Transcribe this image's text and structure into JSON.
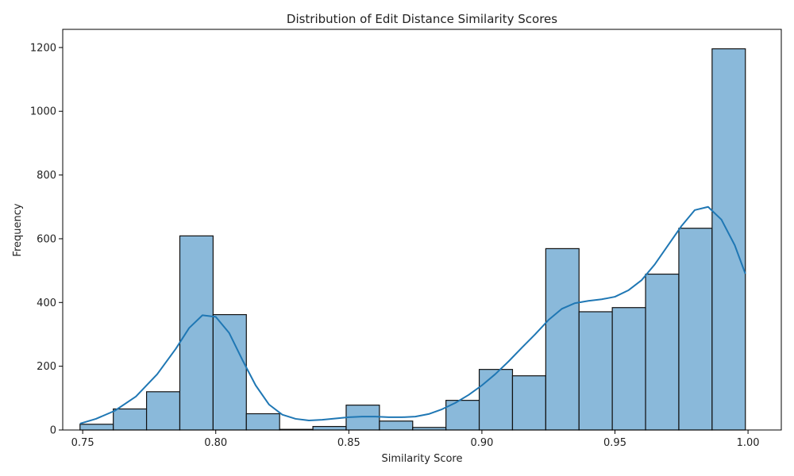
{
  "chart_data": {
    "type": "bar",
    "title": "Distribution of Edit Distance Similarity Scores",
    "xlabel": "Similarity Score",
    "ylabel": "Frequency",
    "xlim": [
      0.7425,
      1.0125
    ],
    "ylim": [
      0,
      1257
    ],
    "x_ticks": [
      0.75,
      0.8,
      0.85,
      0.9,
      0.95,
      1.0
    ],
    "x_tick_labels": [
      "0.75",
      "0.80",
      "0.85",
      "0.90",
      "0.95",
      "1.00"
    ],
    "y_ticks": [
      0,
      200,
      400,
      600,
      800,
      1000,
      1200
    ],
    "y_tick_labels": [
      "0",
      "200",
      "400",
      "600",
      "800",
      "1000",
      "1200"
    ],
    "grid": false,
    "bins": [
      {
        "start": 0.749,
        "end": 0.7615,
        "count": 18
      },
      {
        "start": 0.7615,
        "end": 0.774,
        "count": 66
      },
      {
        "start": 0.774,
        "end": 0.7865,
        "count": 120
      },
      {
        "start": 0.7865,
        "end": 0.799,
        "count": 609
      },
      {
        "start": 0.799,
        "end": 0.8115,
        "count": 362
      },
      {
        "start": 0.8115,
        "end": 0.824,
        "count": 51
      },
      {
        "start": 0.824,
        "end": 0.8365,
        "count": 2
      },
      {
        "start": 0.8365,
        "end": 0.849,
        "count": 11
      },
      {
        "start": 0.849,
        "end": 0.8615,
        "count": 78
      },
      {
        "start": 0.8615,
        "end": 0.874,
        "count": 28
      },
      {
        "start": 0.874,
        "end": 0.8865,
        "count": 8
      },
      {
        "start": 0.8865,
        "end": 0.899,
        "count": 93
      },
      {
        "start": 0.899,
        "end": 0.9115,
        "count": 190
      },
      {
        "start": 0.9115,
        "end": 0.924,
        "count": 170
      },
      {
        "start": 0.924,
        "end": 0.9365,
        "count": 569
      },
      {
        "start": 0.9365,
        "end": 0.949,
        "count": 371
      },
      {
        "start": 0.949,
        "end": 0.9615,
        "count": 384
      },
      {
        "start": 0.9615,
        "end": 0.974,
        "count": 489
      },
      {
        "start": 0.974,
        "end": 0.9865,
        "count": 633
      },
      {
        "start": 0.9865,
        "end": 0.999,
        "count": 1196
      }
    ],
    "kde": {
      "x": [
        0.749,
        0.755,
        0.762,
        0.77,
        0.778,
        0.785,
        0.79,
        0.795,
        0.8,
        0.805,
        0.81,
        0.815,
        0.82,
        0.825,
        0.83,
        0.835,
        0.84,
        0.845,
        0.85,
        0.855,
        0.86,
        0.865,
        0.87,
        0.875,
        0.88,
        0.885,
        0.89,
        0.895,
        0.9,
        0.905,
        0.91,
        0.915,
        0.92,
        0.925,
        0.93,
        0.935,
        0.94,
        0.945,
        0.95,
        0.955,
        0.96,
        0.965,
        0.97,
        0.975,
        0.98,
        0.985,
        0.99,
        0.995,
        0.999
      ],
      "y": [
        20,
        35,
        60,
        105,
        175,
        255,
        320,
        360,
        355,
        305,
        220,
        140,
        80,
        48,
        35,
        30,
        32,
        36,
        40,
        42,
        42,
        40,
        40,
        42,
        50,
        65,
        85,
        110,
        140,
        175,
        215,
        258,
        300,
        345,
        380,
        398,
        405,
        410,
        418,
        438,
        470,
        520,
        580,
        640,
        690,
        700,
        660,
        580,
        490
      ]
    },
    "colors": {
      "bar_fill": "#8ab9da",
      "bar_edge": "#111111",
      "kde_line": "#1f77b4"
    }
  }
}
